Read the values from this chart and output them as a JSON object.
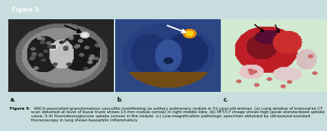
{
  "figure_label": "Figure 5",
  "header_bg_color": "#1a7a7a",
  "header_text_color": "#ffffff",
  "header_font_size": 6,
  "outer_bg_color": "#c8dede",
  "panel_labels": [
    "a.",
    "b.",
    "c."
  ],
  "caption_bold": "Figure 5:",
  "caption_text": "  ANCA-associated granulomatous vasculitis manifesting as solitary pulmonary nodule in 51-year-old woman. (a) Lung window of transverse CT scan obtained at level of basal trunk shows 13-mm nodule (arrow) in right middle lobe. (b) PET/CT image shows high (peak standardized uptake value, 5.4) fluorodeoxyglucose uptake (arrow) in the nodule. (c) Low-magnification pathologic specimen obtained by ultrasound-assisted thoracoscopy in lung shows basophilic inflammatory",
  "caption_font_size": 4.2,
  "left_bar_color": "#1a7a7a",
  "left_bar_width": 0.025
}
